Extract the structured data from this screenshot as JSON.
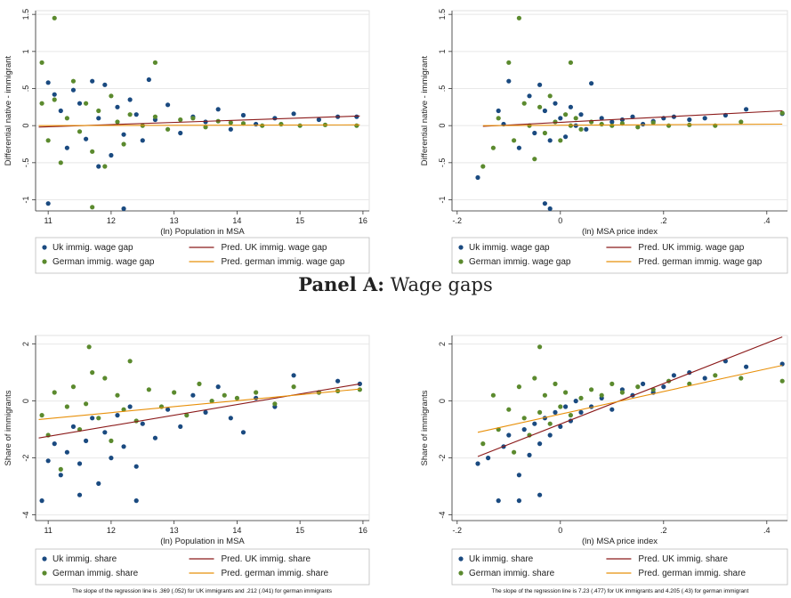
{
  "panel_title": {
    "bold": "Panel A:",
    "rest": "Wage gaps"
  },
  "colors": {
    "uk": "#1a4a80",
    "german": "#5b8a2e",
    "uk_line": "#8b1a1a",
    "german_line": "#e8900a"
  },
  "chart_data": [
    {
      "id": "pop_wage",
      "type": "scatter",
      "xlabel": "(ln) Population in MSA",
      "ylabel": "Differential native - immigrant",
      "xlim": [
        10.8,
        16.1
      ],
      "ylim": [
        -1.15,
        1.55
      ],
      "xticks": [
        11,
        12,
        13,
        14,
        15,
        16
      ],
      "yticks": [
        -1,
        -0.5,
        0,
        0.5,
        1,
        1.5
      ],
      "ytick_labels": [
        "-1",
        "-.5",
        "0",
        ".5",
        "1",
        "1.5"
      ],
      "grid": true,
      "legend": [
        "Uk immig. wage gap",
        "Pred. UK immig. wage gap",
        "German immig. wage gap",
        "Pred. german immig. wage gap"
      ],
      "fit_uk": {
        "x": [
          10.85,
          15.95
        ],
        "y": [
          -0.02,
          0.13
        ]
      },
      "fit_german": {
        "x": [
          10.85,
          15.95
        ],
        "y": [
          0.0,
          0.01
        ]
      },
      "series": [
        {
          "name": "Uk immig. wage gap",
          "x": [
            11.0,
            11.1,
            11.2,
            11.3,
            11.4,
            11.5,
            11.6,
            11.7,
            11.8,
            11.9,
            12.0,
            12.1,
            12.2,
            12.3,
            12.4,
            12.5,
            12.7,
            12.9,
            13.1,
            13.3,
            13.5,
            13.7,
            13.9,
            14.1,
            14.3,
            14.6,
            14.9,
            15.3,
            15.6,
            15.9,
            12.2,
            11.0,
            11.8,
            12.6
          ],
          "y": [
            0.58,
            0.42,
            0.2,
            -0.3,
            0.48,
            0.3,
            -0.18,
            0.6,
            0.1,
            0.55,
            -0.4,
            0.25,
            -0.12,
            0.35,
            0.15,
            -0.2,
            0.08,
            0.28,
            -0.1,
            0.12,
            0.05,
            0.22,
            -0.05,
            0.14,
            0.02,
            0.1,
            0.16,
            0.08,
            0.12,
            0.12,
            -1.12,
            -1.05,
            -0.55,
            0.62
          ]
        },
        {
          "name": "German immig. wage gap",
          "x": [
            10.9,
            11.0,
            11.1,
            11.2,
            11.3,
            11.4,
            11.5,
            11.6,
            11.7,
            11.8,
            11.9,
            12.0,
            12.1,
            12.2,
            12.3,
            12.5,
            12.7,
            12.9,
            13.1,
            13.3,
            13.5,
            13.7,
            13.9,
            14.1,
            14.4,
            14.7,
            15.0,
            15.4,
            15.9,
            11.1,
            12.7,
            10.9,
            11.7
          ],
          "y": [
            0.85,
            -0.2,
            0.35,
            -0.5,
            0.1,
            0.6,
            -0.08,
            0.3,
            -0.35,
            0.2,
            -0.55,
            0.4,
            0.05,
            -0.25,
            0.15,
            0.0,
            0.12,
            -0.05,
            0.08,
            0.1,
            -0.02,
            0.06,
            0.04,
            0.03,
            0.0,
            0.02,
            0.0,
            0.01,
            0.0,
            1.45,
            0.85,
            0.3,
            -1.1
          ]
        }
      ]
    },
    {
      "id": "price_wage",
      "type": "scatter",
      "xlabel": "(ln) MSA price index",
      "ylabel": "Differential native - immigrant",
      "xlim": [
        -0.21,
        0.44
      ],
      "ylim": [
        -1.15,
        1.55
      ],
      "xticks": [
        -0.2,
        0,
        0.2,
        0.4
      ],
      "xtick_labels": [
        "-.2",
        "0",
        ".2",
        ".4"
      ],
      "yticks": [
        -1,
        -0.5,
        0,
        0.5,
        1,
        1.5
      ],
      "ytick_labels": [
        "-1",
        "-.5",
        "0",
        ".5",
        "1",
        "1.5"
      ],
      "grid": true,
      "legend": [
        "Uk immig. wage gap",
        "Pred. UK immig. wage gap",
        "German immig. wage gap",
        "Pred. german immig. wage gap"
      ],
      "fit_uk": {
        "x": [
          -0.15,
          0.43
        ],
        "y": [
          -0.01,
          0.2
        ]
      },
      "fit_german": {
        "x": [
          -0.15,
          0.43
        ],
        "y": [
          0.0,
          0.02
        ]
      },
      "series": [
        {
          "name": "Uk immig. wage gap",
          "x": [
            -0.16,
            -0.12,
            -0.1,
            -0.08,
            -0.06,
            -0.05,
            -0.04,
            -0.03,
            -0.02,
            -0.01,
            0.0,
            0.01,
            0.02,
            0.03,
            0.04,
            0.05,
            0.06,
            0.08,
            0.1,
            0.12,
            0.14,
            0.16,
            0.18,
            0.2,
            0.22,
            0.25,
            0.28,
            0.32,
            0.36,
            0.43,
            -0.03,
            -0.02,
            -0.11
          ],
          "y": [
            -0.7,
            0.2,
            0.6,
            -0.3,
            0.4,
            -0.1,
            0.55,
            0.2,
            -0.2,
            0.3,
            0.1,
            -0.15,
            0.25,
            0.0,
            0.15,
            -0.05,
            0.57,
            0.1,
            0.05,
            0.08,
            0.12,
            0.02,
            0.06,
            0.1,
            0.12,
            0.08,
            0.1,
            0.14,
            0.22,
            0.16,
            -1.05,
            -1.12,
            0.02
          ]
        },
        {
          "name": "German immig. wage gap",
          "x": [
            -0.15,
            -0.12,
            -0.1,
            -0.09,
            -0.07,
            -0.06,
            -0.05,
            -0.04,
            -0.03,
            -0.02,
            -0.01,
            0.0,
            0.01,
            0.02,
            0.03,
            0.04,
            0.06,
            0.08,
            0.1,
            0.12,
            0.15,
            0.18,
            0.21,
            0.25,
            0.3,
            0.35,
            0.43,
            -0.08,
            0.02,
            -0.13
          ],
          "y": [
            -0.55,
            0.1,
            0.85,
            -0.2,
            0.3,
            0.0,
            -0.45,
            0.25,
            -0.1,
            0.4,
            0.05,
            -0.2,
            0.15,
            0.0,
            0.1,
            -0.05,
            0.05,
            0.02,
            0.0,
            0.03,
            -0.02,
            0.04,
            0.0,
            0.01,
            0.0,
            0.05,
            0.17,
            1.45,
            0.85,
            -0.3
          ]
        }
      ]
    },
    {
      "id": "pop_share",
      "type": "scatter",
      "xlabel": "(ln) Population in MSA",
      "ylabel": "Share of immigrants",
      "xlim": [
        10.8,
        16.1
      ],
      "ylim": [
        -4.2,
        2.3
      ],
      "xticks": [
        11,
        12,
        13,
        14,
        15,
        16
      ],
      "yticks": [
        -4,
        -2,
        0,
        2
      ],
      "ytick_labels": [
        "-4",
        "-2",
        "0",
        "2"
      ],
      "grid": true,
      "legend": [
        "Uk immig. share",
        "Pred. UK immig. share",
        "German immig. share",
        "Pred. german immig. share"
      ],
      "fit_uk": {
        "x": [
          10.85,
          15.95
        ],
        "y": [
          -1.3,
          0.6
        ]
      },
      "fit_german": {
        "x": [
          10.85,
          15.95
        ],
        "y": [
          -0.65,
          0.42
        ]
      },
      "series": [
        {
          "name": "Uk immig. share",
          "x": [
            10.9,
            11.0,
            11.1,
            11.2,
            11.3,
            11.4,
            11.5,
            11.6,
            11.7,
            11.8,
            11.9,
            12.0,
            12.1,
            12.2,
            12.3,
            12.4,
            12.5,
            12.7,
            12.9,
            13.1,
            13.3,
            13.5,
            13.7,
            13.9,
            14.1,
            14.3,
            14.6,
            14.9,
            15.3,
            15.6,
            15.95,
            12.4,
            11.5
          ],
          "y": [
            -3.5,
            -2.1,
            -1.5,
            -2.6,
            -1.8,
            -0.9,
            -2.2,
            -1.4,
            -0.6,
            -2.9,
            -1.1,
            -2.0,
            -0.5,
            -1.6,
            -0.2,
            -2.3,
            -0.8,
            -1.3,
            -0.3,
            -0.9,
            0.2,
            -0.4,
            0.5,
            -0.6,
            -1.1,
            0.1,
            -0.2,
            0.9,
            0.3,
            0.7,
            0.6,
            -3.5,
            -3.3
          ]
        },
        {
          "name": "German immig. share",
          "x": [
            10.9,
            11.0,
            11.1,
            11.2,
            11.3,
            11.4,
            11.5,
            11.6,
            11.7,
            11.8,
            11.9,
            12.0,
            12.1,
            12.2,
            12.3,
            12.4,
            12.6,
            12.8,
            13.0,
            13.2,
            13.4,
            13.6,
            13.8,
            14.0,
            14.3,
            14.6,
            14.9,
            15.3,
            15.6,
            15.95,
            11.65
          ],
          "y": [
            -0.5,
            -1.2,
            0.3,
            -2.4,
            -0.2,
            0.5,
            -1.0,
            -0.1,
            1.0,
            -0.6,
            0.8,
            -1.4,
            0.2,
            -0.3,
            1.4,
            -0.7,
            0.4,
            -0.2,
            0.3,
            -0.5,
            0.6,
            0.0,
            0.2,
            0.1,
            0.3,
            -0.1,
            0.5,
            0.3,
            0.35,
            0.4,
            1.9
          ]
        }
      ]
    },
    {
      "id": "price_share",
      "type": "scatter",
      "xlabel": "(ln) MSA price index",
      "ylabel": "Share of immigrants",
      "xlim": [
        -0.21,
        0.44
      ],
      "ylim": [
        -4.2,
        2.3
      ],
      "xticks": [
        -0.2,
        0,
        0.2,
        0.4
      ],
      "xtick_labels": [
        "-.2",
        "0",
        ".2",
        ".4"
      ],
      "yticks": [
        -4,
        -2,
        0,
        2
      ],
      "ytick_labels": [
        "-4",
        "-2",
        "0",
        "2"
      ],
      "grid": true,
      "legend": [
        "Uk immig. share",
        "Pred. UK immig. share",
        "German immig. share",
        "Pred. german immig. share"
      ],
      "fit_uk": {
        "x": [
          -0.16,
          0.43
        ],
        "y": [
          -1.95,
          2.25
        ]
      },
      "fit_german": {
        "x": [
          -0.16,
          0.43
        ],
        "y": [
          -1.1,
          1.25
        ]
      },
      "series": [
        {
          "name": "Uk immig. share",
          "x": [
            -0.16,
            -0.14,
            -0.12,
            -0.11,
            -0.1,
            -0.08,
            -0.07,
            -0.06,
            -0.05,
            -0.04,
            -0.03,
            -0.02,
            -0.01,
            0.0,
            0.01,
            0.02,
            0.03,
            0.04,
            0.06,
            0.08,
            0.1,
            0.12,
            0.14,
            0.16,
            0.18,
            0.2,
            0.22,
            0.25,
            0.28,
            0.32,
            0.36,
            0.43,
            -0.08,
            -0.04
          ],
          "y": [
            -2.2,
            -2.0,
            -3.5,
            -1.6,
            -1.2,
            -2.6,
            -1.0,
            -1.9,
            -0.8,
            -1.5,
            -0.6,
            -1.2,
            -0.4,
            -0.9,
            -0.2,
            -0.7,
            0.0,
            -0.4,
            -0.2,
            0.1,
            -0.3,
            0.4,
            0.2,
            0.6,
            0.3,
            0.5,
            0.9,
            1.0,
            0.8,
            1.4,
            1.2,
            1.3,
            -3.5,
            -3.3
          ]
        },
        {
          "name": "German immig. share",
          "x": [
            -0.15,
            -0.13,
            -0.12,
            -0.1,
            -0.09,
            -0.08,
            -0.07,
            -0.06,
            -0.05,
            -0.04,
            -0.03,
            -0.02,
            -0.01,
            0.0,
            0.01,
            0.02,
            0.04,
            0.06,
            0.08,
            0.1,
            0.12,
            0.15,
            0.18,
            0.21,
            0.25,
            0.3,
            0.35,
            0.43,
            -0.04
          ],
          "y": [
            -1.5,
            0.2,
            -1.0,
            -0.3,
            -1.8,
            0.5,
            -0.6,
            -1.2,
            0.8,
            -0.4,
            0.2,
            -0.8,
            0.6,
            -0.2,
            0.3,
            -0.5,
            0.1,
            0.4,
            0.2,
            0.6,
            0.3,
            0.5,
            0.4,
            0.7,
            0.6,
            0.9,
            0.8,
            0.7,
            1.9
          ]
        }
      ]
    }
  ],
  "notes": [
    "The slope of the regression line is .369 (.052) for UK immigrants and .212 (.041) for german immigrants",
    "The slope of the regression line is 7.23 (.477) for UK immigrants and 4.205 (.43) for german immigrant"
  ]
}
